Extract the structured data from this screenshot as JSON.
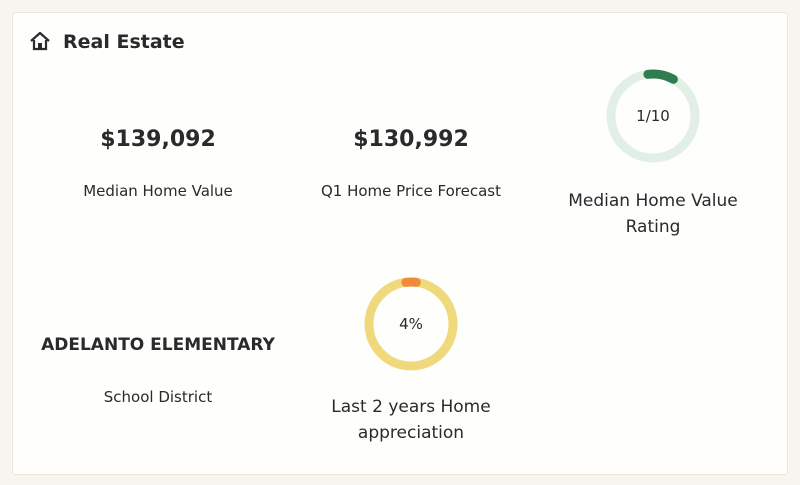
{
  "header": {
    "title": "Real Estate"
  },
  "stats": [
    {
      "value": "$139,092",
      "label": "Median Home Value"
    },
    {
      "value": "$130,992",
      "label": "Q1 Home Price Forecast"
    },
    {
      "value": "ADELANTO ELEMENTARY",
      "label": "School District"
    }
  ],
  "rings": [
    {
      "label": "1/10",
      "value": 1,
      "max": 10,
      "caption": "Median Home Value Rating",
      "color": "#2f7d4e",
      "track": "#e2efe7"
    },
    {
      "label": "4%",
      "value": 4,
      "caption": "Last 2 years Home appreciation",
      "color": "#ef8a3a",
      "track": "#f0d97c"
    }
  ]
}
